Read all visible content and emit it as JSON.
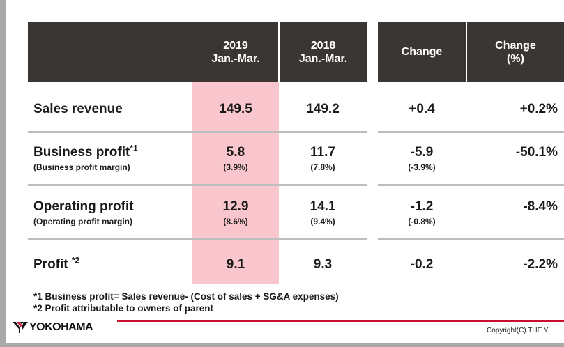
{
  "header": {
    "col_2019": [
      "2019",
      "Jan.-Mar."
    ],
    "col_2018": [
      "2018",
      "Jan.-Mar."
    ],
    "col_change": "Change",
    "col_change_pct": [
      "Change",
      "(%)"
    ]
  },
  "rows": [
    {
      "label": "Sales revenue",
      "v2019": "149.5",
      "v2018": "149.2",
      "change": "+0.4",
      "change_pct": "+0.2%"
    },
    {
      "label": "Business profit",
      "label_sup": "*1",
      "sublabel": "(Business profit margin)",
      "v2019": "5.8",
      "v2019_sub": "(3.9%)",
      "v2018": "11.7",
      "v2018_sub": "(7.8%)",
      "change": "-5.9",
      "change_sub": "(-3.9%)",
      "change_pct": "-50.1%"
    },
    {
      "label": "Operating profit",
      "sublabel": "(Operating profit margin)",
      "v2019": "12.9",
      "v2019_sub": "(8.6%)",
      "v2018": "14.1",
      "v2018_sub": "(9.4%)",
      "change": "-1.2",
      "change_sub": "(-0.8%)",
      "change_pct": "-8.4%"
    },
    {
      "label": "Profit ",
      "label_sup": "*2",
      "v2019": "9.1",
      "v2018": "9.3",
      "change": "-0.2",
      "change_pct": "-2.2%"
    }
  ],
  "notes": [
    "*1 Business profit= Sales revenue- (Cost of sales + SG&A expenses)",
    "*2 Profit attributable to owners of parent"
  ],
  "footer": {
    "logo_text": "YOKOHAMA",
    "copyright": "Copyright(C) THE Y"
  },
  "colors": {
    "header_bg": "#3a3634",
    "highlight": "#f8c6cc",
    "separator": "#bdbdbd",
    "brand_red": "#c8102e"
  }
}
